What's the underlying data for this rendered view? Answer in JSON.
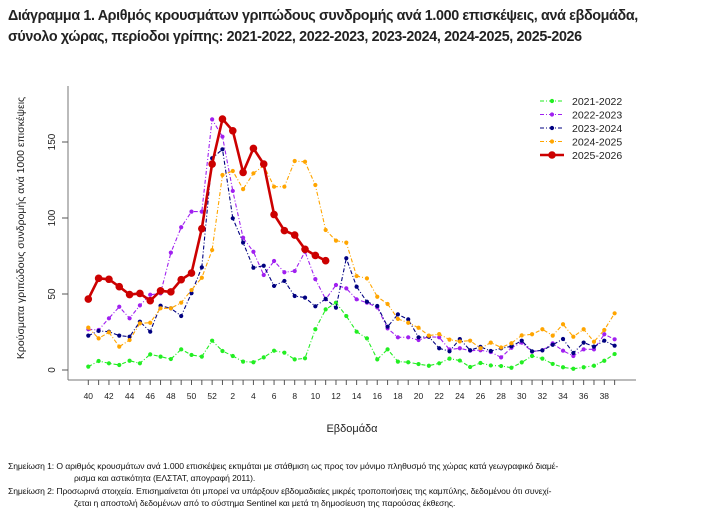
{
  "title_line1": "Διάγραμμα 1. Αριθμός κρουσμάτων γριπώδους συνδρομής ανά 1.000 επισκέψεις, ανά εβδομάδα,",
  "title_line2": "σύνολο χώρας, περίοδοι γρίπης: 2021-2022, 2022-2023, 2023-2024, 2024-2025, 2025-2026",
  "notes": [
    {
      "label": "Σημείωση 1:",
      "line1": "Ο αριθμός κρουσμάτων ανά 1.000 επισκέψεις εκτιμάται με στάθμιση ως προς τον μόνιμο πληθυσμό της χώρας κατά γεωγραφικό διαμέ-",
      "line2": "ρισμα και αστικότητα (ΕΛΣΤΑΤ, απογραφή 2011)."
    },
    {
      "label": "Σημείωση 2:",
      "line1": "Προσωρινά στοιχεία. Επισημαίνεται ότι μπορεί να υπάρξουν εβδομαδιαίες μικρές τροποποιήσεις της καμπύλης, δεδομένου ότι συνεχί-",
      "line2": "ζεται η αποστολή δεδομένων από το σύστημα Sentinel και μετά τη δημοσίευση της παρούσας έκθεσης."
    }
  ],
  "chart_data": {
    "type": "line",
    "title": "Διάγραμμα 1. Αριθμός κρουσμάτων γριπώδους συνδρομής ανά 1.000 επισκέψεις, ανά εβδομάδα, σύνολο χώρας, περίοδοι γρίπης: 2021-2022, 2022-2023, 2023-2024, 2024-2025, 2025-2026",
    "xlabel": "Εβδομάδα",
    "ylabel": "Κρούσματα γριπώδους συνδρομής ανά 1000 επισκέψεις",
    "x": [
      40,
      41,
      42,
      43,
      44,
      45,
      46,
      47,
      48,
      49,
      50,
      51,
      52,
      1,
      2,
      3,
      4,
      5,
      6,
      7,
      8,
      9,
      10,
      11,
      12,
      13,
      14,
      15,
      16,
      17,
      18,
      19,
      20,
      21,
      22,
      23,
      24,
      25,
      26,
      27,
      28,
      29,
      30,
      31,
      32,
      33,
      34,
      35,
      36,
      37,
      38,
      39
    ],
    "x_tick_labels": [
      "40",
      "42",
      "44",
      "46",
      "48",
      "50",
      "52",
      "2",
      "4",
      "6",
      "8",
      "10",
      "12",
      "14",
      "16",
      "18",
      "20",
      "22",
      "24",
      "26",
      "28",
      "30",
      "32",
      "34",
      "36",
      "38"
    ],
    "y_ticks": [
      0,
      50,
      100,
      150
    ],
    "ylim": [
      0,
      180
    ],
    "grid": false,
    "legend_position": "top-right",
    "series": [
      {
        "name": "2021-2022",
        "color": "#22ee22",
        "style": "dashed-thin",
        "values": [
          2.2,
          5.9,
          4.4,
          3.3,
          6.1,
          4.4,
          10.3,
          8.8,
          7.2,
          13.6,
          9.9,
          8.8,
          19.3,
          12.5,
          9.2,
          5.5,
          5.1,
          8.3,
          12.7,
          11.4,
          7.0,
          7.7,
          26.8,
          39.9,
          44.3,
          35.5,
          25.2,
          20.8,
          7.0,
          13.6,
          5.5,
          5.1,
          3.9,
          2.8,
          4.4,
          7.5,
          6.2,
          2.0,
          4.6,
          3.0,
          2.6,
          1.5,
          5.0,
          9.2,
          7.5,
          4.0,
          1.8,
          0.8,
          1.8,
          2.8,
          6.1,
          10.5
        ]
      },
      {
        "name": "2022-2023",
        "color": "#a020f0",
        "style": "dashed-thin",
        "values": [
          26.8,
          26.3,
          34.0,
          41.6,
          34.0,
          42.5,
          49.5,
          50.4,
          77.2,
          93.9,
          104.2,
          104.2,
          164.9,
          153.5,
          117.8,
          87.0,
          77.8,
          62.5,
          71.7,
          64.3,
          65.1,
          77.8,
          59.8,
          46.5,
          55.9,
          53.7,
          46.5,
          44.3,
          41.2,
          27.4,
          21.5,
          21.5,
          19.7,
          21.9,
          21.5,
          13.5,
          14.3,
          12.7,
          13.0,
          11.8,
          8.3,
          14.6,
          18.0,
          12.1,
          13.0,
          17.5,
          12.7,
          9.2,
          13.6,
          13.6,
          23.5,
          20.2
        ]
      },
      {
        "name": "2023-2024",
        "color": "#000080",
        "style": "dashed-thin",
        "values": [
          22.6,
          25.7,
          25.2,
          22.6,
          21.9,
          31.8,
          25.2,
          42.3,
          40.6,
          35.5,
          50.6,
          67.5,
          139.3,
          145.2,
          99.8,
          83.8,
          67.3,
          68.6,
          55.3,
          58.6,
          48.7,
          47.6,
          41.9,
          46.8,
          41.0,
          73.5,
          54.8,
          44.9,
          42.1,
          28.5,
          36.6,
          33.3,
          21.5,
          21.9,
          14.3,
          12.3,
          20.3,
          13.0,
          15.2,
          12.5,
          14.3,
          15.6,
          19.3,
          12.3,
          12.9,
          16.6,
          20.4,
          11.2,
          18.0,
          15.4,
          19.3,
          16.0
        ]
      },
      {
        "name": "2024-2025",
        "color": "#ffa500",
        "style": "dashed-thin",
        "values": [
          27.9,
          20.8,
          24.8,
          15.4,
          19.7,
          30.7,
          31.1,
          40.6,
          40.6,
          44.3,
          52.6,
          60.7,
          78.9,
          128.3,
          130.9,
          119.0,
          129.4,
          134.4,
          120.6,
          120.6,
          137.5,
          137.0,
          121.7,
          92.1,
          85.1,
          83.8,
          61.8,
          60.3,
          48.2,
          43.4,
          33.6,
          31.1,
          27.8,
          22.6,
          23.6,
          20.0,
          18.8,
          19.3,
          14.3,
          18.0,
          14.8,
          17.6,
          22.8,
          23.5,
          26.8,
          22.6,
          30.1,
          21.9,
          26.8,
          18.6,
          26.3,
          37.3
        ]
      },
      {
        "name": "2025-2026",
        "color": "#cc0000",
        "style": "solid-thick",
        "values": [
          46.7,
          60.3,
          59.7,
          54.8,
          49.6,
          50.4,
          45.6,
          52.1,
          51.4,
          59.4,
          63.8,
          93.0,
          135.5,
          165.1,
          157.4,
          130.0,
          145.8,
          135.5,
          102.3,
          91.7,
          88.8,
          79.4,
          75.4,
          71.9
        ]
      }
    ]
  }
}
